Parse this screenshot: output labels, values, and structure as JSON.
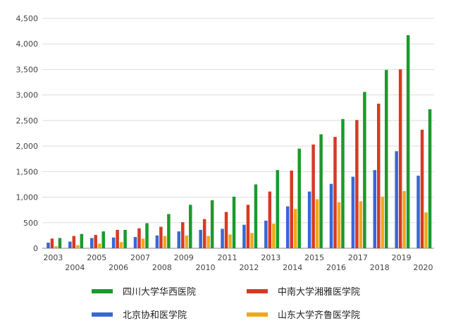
{
  "chart_data": {
    "type": "bar",
    "title": "",
    "xlabel": "",
    "ylabel": "",
    "ylim": [
      0,
      4500
    ],
    "y_ticks": [
      "0",
      "500",
      "1,000",
      "1,500",
      "2,000",
      "2,500",
      "3,000",
      "3,500",
      "4,000",
      "4,500"
    ],
    "y_tick_values": [
      0,
      500,
      1000,
      1500,
      2000,
      2500,
      3000,
      3500,
      4000,
      4500
    ],
    "grid": true,
    "legend_position": "bottom",
    "categories": [
      "2003",
      "2004",
      "2005",
      "2006",
      "2007",
      "2008",
      "2009",
      "2010",
      "2011",
      "2012",
      "2013",
      "2014",
      "2015",
      "2016",
      "2017",
      "2018",
      "2019",
      "2020"
    ],
    "series": [
      {
        "name": "北京协和医学院",
        "color": "#3a66d6",
        "values": [
          110,
          130,
          200,
          210,
          220,
          250,
          330,
          360,
          380,
          460,
          540,
          820,
          1110,
          1260,
          1400,
          1530,
          1900,
          1420
        ]
      },
      {
        "name": "中南大学湘雅医学院",
        "color": "#d63a24",
        "values": [
          190,
          240,
          260,
          360,
          390,
          420,
          510,
          570,
          710,
          850,
          1110,
          1520,
          2030,
          2180,
          2510,
          2830,
          3500,
          2320
        ]
      },
      {
        "name": "山东大学齐鲁医学院",
        "color": "#f0a81b",
        "values": [
          40,
          60,
          90,
          120,
          190,
          240,
          250,
          240,
          270,
          300,
          480,
          770,
          960,
          900,
          920,
          1010,
          1120,
          700
        ]
      },
      {
        "name": "四川大学华西医院",
        "color": "#1a9a2e",
        "values": [
          200,
          280,
          330,
          360,
          490,
          670,
          850,
          940,
          1010,
          1250,
          1530,
          1950,
          2230,
          2530,
          3060,
          3490,
          4170,
          2720
        ]
      }
    ]
  }
}
